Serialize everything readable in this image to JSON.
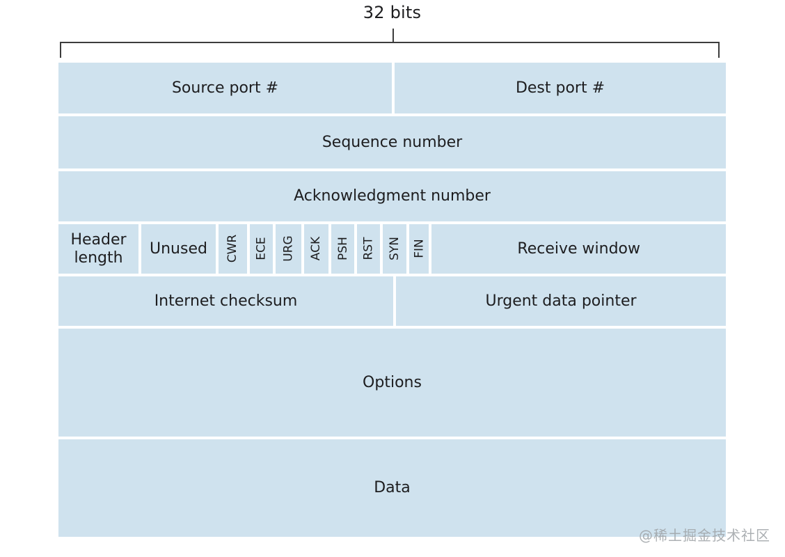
{
  "title": "32 bits",
  "watermark": "@稀土掘金技术社区",
  "colors": {
    "cell_fill": "#cfe2ee",
    "text": "#1d1d1f",
    "bracket": "#3c3c3c",
    "background": "#ffffff",
    "watermark": "#9ea2a6"
  },
  "fields": {
    "source_port": "Source port #",
    "dest_port": "Dest port #",
    "sequence_number": "Sequence number",
    "ack_number": "Acknowledgment number",
    "header_length": "Header length",
    "unused": "Unused",
    "flags": [
      "CWR",
      "ECE",
      "URG",
      "ACK",
      "PSH",
      "RST",
      "SYN",
      "FIN"
    ],
    "receive_window": "Receive window",
    "internet_checksum": "Internet checksum",
    "urgent_data_pointer": "Urgent data pointer",
    "options": "Options",
    "data": "Data"
  }
}
